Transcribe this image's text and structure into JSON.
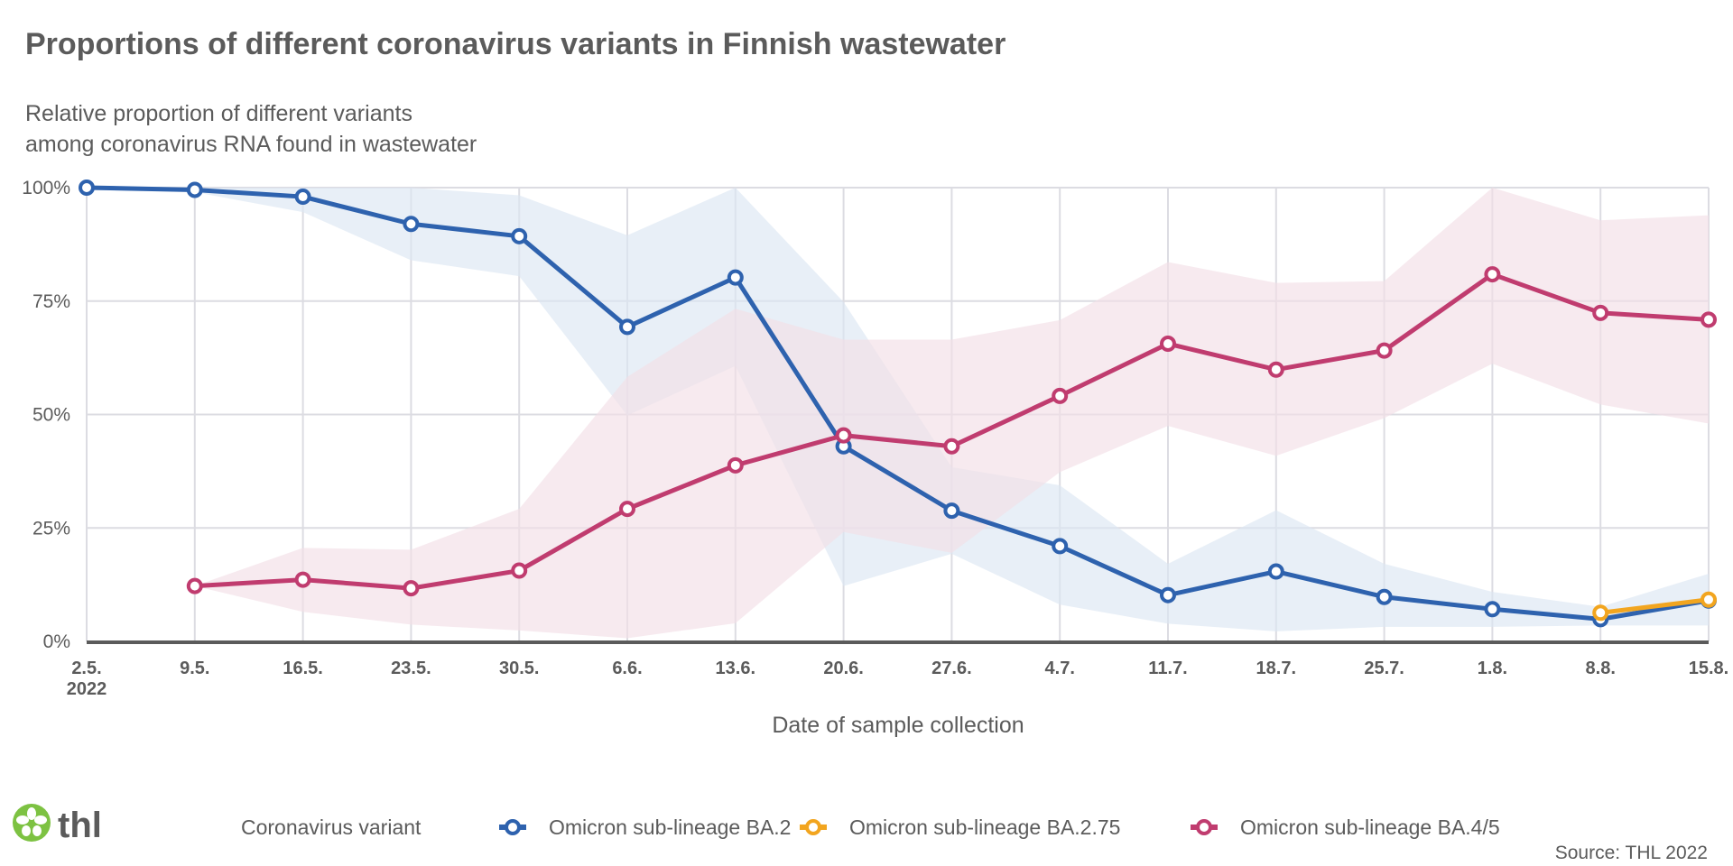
{
  "chart_data": {
    "type": "line",
    "title": "Proportions of different coronavirus variants in Finnish wastewater",
    "subtitle": [
      "Relative proportion of different variants",
      "among coronavirus RNA found in wastewater"
    ],
    "xlabel": "Date of sample collection",
    "ylabel": "",
    "x": [
      "2.5.",
      "9.5.",
      "16.5.",
      "23.5.",
      "30.5.",
      "6.6.",
      "13.6.",
      "20.6.",
      "27.6.",
      "4.7.",
      "11.7.",
      "18.7.",
      "25.7.",
      "1.8.",
      "8.8.",
      "15.8."
    ],
    "x_year_label": "2022",
    "yticks": [
      "0%",
      "25%",
      "50%",
      "75%",
      "100%"
    ],
    "ylim": [
      0,
      100
    ],
    "grid": true,
    "legend_title": "Coronavirus variant",
    "legend_placement": "bottom",
    "series": [
      {
        "name": "Omicron sub-lineage BA.2",
        "color": "#2e62ae",
        "band_color": "#dce6f3",
        "values": [
          100,
          99.5,
          98,
          92,
          89.3,
          69.3,
          80.2,
          43,
          28.8,
          21,
          10.2,
          15.4,
          9.8,
          7.1,
          4.9,
          9.0
        ],
        "upper": [
          100,
          100,
          100,
          100,
          98.3,
          89.5,
          100,
          74.8,
          38.4,
          34.4,
          17.1,
          28.9,
          17.1,
          10.9,
          7.6,
          14.9
        ],
        "lower": [
          100,
          99,
          94.6,
          84,
          80.5,
          49.8,
          60.7,
          12.2,
          19.3,
          8.1,
          3.9,
          2.2,
          3.2,
          3.2,
          3.5,
          3.5
        ]
      },
      {
        "name": "Omicron sub-lineage BA.2.75",
        "color": "#f2a51f",
        "band_color": "#fbe9c4",
        "values": [
          null,
          null,
          null,
          null,
          null,
          null,
          null,
          null,
          null,
          null,
          null,
          null,
          null,
          null,
          6.3,
          9.2
        ],
        "upper": null,
        "lower": null
      },
      {
        "name": "Omicron sub-lineage BA.4/5",
        "color": "#c03c6f",
        "band_color": "#f3dfe7",
        "values": [
          null,
          12.2,
          13.6,
          11.7,
          15.6,
          29.2,
          38.8,
          45.4,
          43,
          54.1,
          65.6,
          59.9,
          64.1,
          80.9,
          72.4,
          70.9
        ],
        "upper": [
          null,
          12.2,
          20.6,
          20.2,
          29.2,
          58.3,
          73.3,
          66.5,
          66.5,
          70.8,
          83.6,
          79,
          79.4,
          100,
          92.8,
          93.9
        ],
        "lower": [
          null,
          12.2,
          6.5,
          3.7,
          2.4,
          0.7,
          4,
          24.1,
          19.5,
          37.3,
          47.5,
          40.9,
          49.2,
          61.2,
          52.2,
          48
        ]
      }
    ],
    "source": "Source: THL 2022"
  },
  "logo": {
    "text": "thl",
    "color": "#7dc242"
  }
}
